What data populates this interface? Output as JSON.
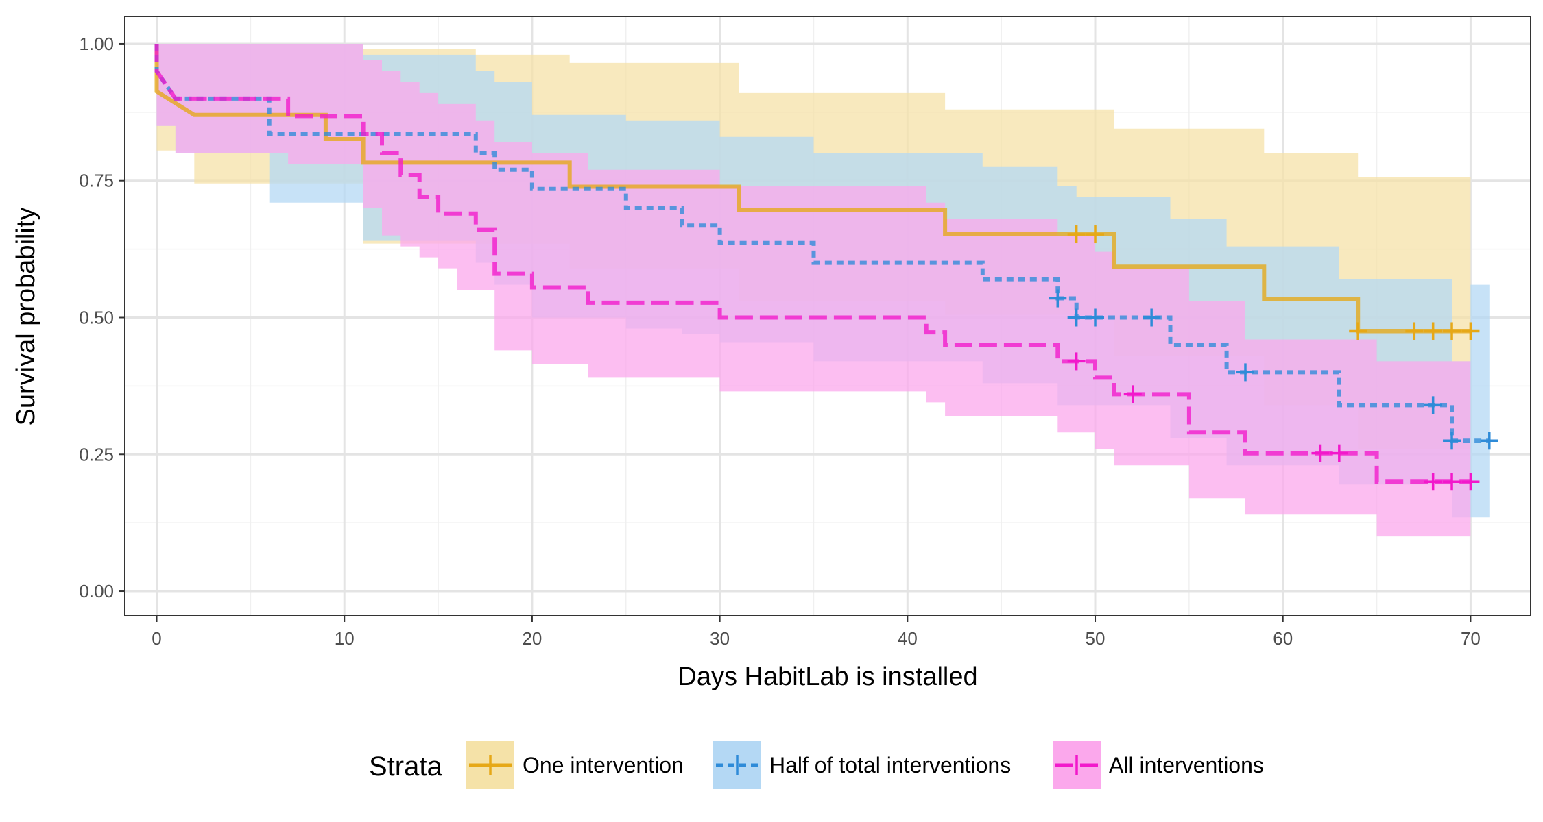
{
  "chart_data": {
    "type": "line",
    "subtype": "kaplan-meier step survival curves with confidence bands",
    "title": "",
    "xlabel": "Days HabitLab is installed",
    "ylabel": "Survival probability",
    "xlim": [
      -1.7,
      73.2
    ],
    "ylim": [
      -0.045,
      1.05
    ],
    "xticks": [
      0,
      10,
      20,
      30,
      40,
      50,
      60,
      70
    ],
    "yticks": [
      0.0,
      0.25,
      0.5,
      0.75,
      1.0
    ],
    "xtick_labels": [
      "0",
      "10",
      "20",
      "30",
      "40",
      "50",
      "60",
      "70"
    ],
    "ytick_labels": [
      "0.00",
      "0.25",
      "0.50",
      "0.75",
      "1.00"
    ],
    "grid": true,
    "legend": {
      "title": "Strata",
      "position": "bottom"
    },
    "series": [
      {
        "name": "One intervention",
        "color": "#E6A817",
        "band_color": "#F5E2A8",
        "dash": "solid",
        "steps": [
          [
            0,
            1.0
          ],
          [
            0,
            0.913
          ],
          [
            2,
            0.87
          ],
          [
            9,
            0.87
          ],
          [
            9,
            0.826
          ],
          [
            11,
            0.826
          ],
          [
            11,
            0.783
          ],
          [
            22,
            0.783
          ],
          [
            22,
            0.739
          ],
          [
            31,
            0.739
          ],
          [
            31,
            0.696
          ],
          [
            42,
            0.696
          ],
          [
            42,
            0.652
          ],
          [
            51,
            0.652
          ],
          [
            51,
            0.593
          ],
          [
            59,
            0.593
          ],
          [
            59,
            0.534
          ],
          [
            64,
            0.534
          ],
          [
            64,
            0.475
          ],
          [
            70,
            0.475
          ]
        ],
        "band_lower": [
          [
            0,
            0.805
          ],
          [
            2,
            0.745
          ],
          [
            9,
            0.745
          ],
          [
            11,
            0.635
          ],
          [
            22,
            0.59
          ],
          [
            31,
            0.53
          ],
          [
            42,
            0.505
          ],
          [
            51,
            0.43
          ],
          [
            59,
            0.34
          ],
          [
            64,
            0.26
          ],
          [
            70,
            0.26
          ]
        ],
        "band_upper": [
          [
            0,
            1.0
          ],
          [
            2,
            1.0
          ],
          [
            9,
            1.0
          ],
          [
            11,
            0.99
          ],
          [
            17,
            0.98
          ],
          [
            22,
            0.965
          ],
          [
            31,
            0.91
          ],
          [
            42,
            0.88
          ],
          [
            51,
            0.845
          ],
          [
            59,
            0.8
          ],
          [
            64,
            0.757
          ],
          [
            70,
            0.757
          ]
        ],
        "censored": [
          [
            49,
            0.652
          ],
          [
            50,
            0.652
          ],
          [
            64,
            0.475
          ],
          [
            67,
            0.475
          ],
          [
            68,
            0.475
          ],
          [
            69,
            0.475
          ],
          [
            70,
            0.475
          ]
        ]
      },
      {
        "name": "Half of total interventions",
        "color": "#2E8BD8",
        "band_color": "#B4D8F4",
        "dash": "short-dash",
        "steps": [
          [
            0,
            1.0
          ],
          [
            0,
            0.95
          ],
          [
            1,
            0.9
          ],
          [
            6,
            0.9
          ],
          [
            6,
            0.835
          ],
          [
            17,
            0.835
          ],
          [
            17,
            0.8
          ],
          [
            18,
            0.8
          ],
          [
            18,
            0.77
          ],
          [
            20,
            0.77
          ],
          [
            20,
            0.735
          ],
          [
            25,
            0.735
          ],
          [
            25,
            0.7
          ],
          [
            28,
            0.7
          ],
          [
            28,
            0.668
          ],
          [
            30,
            0.668
          ],
          [
            30,
            0.636
          ],
          [
            35,
            0.636
          ],
          [
            35,
            0.6
          ],
          [
            44,
            0.6
          ],
          [
            44,
            0.57
          ],
          [
            48,
            0.57
          ],
          [
            48,
            0.535
          ],
          [
            49,
            0.535
          ],
          [
            49,
            0.5
          ],
          [
            54,
            0.5
          ],
          [
            54,
            0.45
          ],
          [
            57,
            0.45
          ],
          [
            57,
            0.4
          ],
          [
            63,
            0.4
          ],
          [
            63,
            0.34
          ],
          [
            69,
            0.34
          ],
          [
            69,
            0.275
          ],
          [
            71,
            0.275
          ]
        ],
        "band_lower": [
          [
            0,
            0.85
          ],
          [
            1,
            0.8
          ],
          [
            6,
            0.71
          ],
          [
            9,
            0.71
          ],
          [
            11,
            0.64
          ],
          [
            17,
            0.6
          ],
          [
            18,
            0.56
          ],
          [
            20,
            0.5
          ],
          [
            25,
            0.48
          ],
          [
            28,
            0.47
          ],
          [
            30,
            0.455
          ],
          [
            35,
            0.42
          ],
          [
            44,
            0.38
          ],
          [
            48,
            0.34
          ],
          [
            54,
            0.28
          ],
          [
            57,
            0.23
          ],
          [
            63,
            0.195
          ],
          [
            69,
            0.135
          ],
          [
            71,
            0.135
          ]
        ],
        "band_upper": [
          [
            0,
            1.0
          ],
          [
            6,
            1.0
          ],
          [
            11,
            0.98
          ],
          [
            17,
            0.95
          ],
          [
            18,
            0.93
          ],
          [
            20,
            0.87
          ],
          [
            25,
            0.86
          ],
          [
            30,
            0.83
          ],
          [
            35,
            0.8
          ],
          [
            44,
            0.775
          ],
          [
            48,
            0.74
          ],
          [
            49,
            0.72
          ],
          [
            54,
            0.68
          ],
          [
            57,
            0.63
          ],
          [
            63,
            0.57
          ],
          [
            69,
            0.42
          ],
          [
            70,
            0.56
          ],
          [
            71,
            0.56
          ]
        ],
        "censored": [
          [
            48,
            0.535
          ],
          [
            49,
            0.5
          ],
          [
            50,
            0.5
          ],
          [
            53,
            0.5
          ],
          [
            58,
            0.4
          ],
          [
            68,
            0.34
          ],
          [
            69,
            0.275
          ],
          [
            71,
            0.275
          ]
        ]
      },
      {
        "name": "All interventions",
        "color": "#F218CB",
        "band_color": "#FBA8EC",
        "dash": "long-dash",
        "steps": [
          [
            0,
            1.0
          ],
          [
            0,
            0.95
          ],
          [
            1,
            0.9
          ],
          [
            7,
            0.9
          ],
          [
            7,
            0.868
          ],
          [
            11,
            0.868
          ],
          [
            11,
            0.835
          ],
          [
            12,
            0.835
          ],
          [
            12,
            0.8
          ],
          [
            13,
            0.8
          ],
          [
            13,
            0.76
          ],
          [
            14,
            0.76
          ],
          [
            14,
            0.72
          ],
          [
            15,
            0.72
          ],
          [
            15,
            0.69
          ],
          [
            17,
            0.69
          ],
          [
            17,
            0.66
          ],
          [
            18,
            0.66
          ],
          [
            18,
            0.58
          ],
          [
            20,
            0.58
          ],
          [
            20,
            0.555
          ],
          [
            23,
            0.555
          ],
          [
            23,
            0.527
          ],
          [
            30,
            0.527
          ],
          [
            30,
            0.5
          ],
          [
            41,
            0.5
          ],
          [
            41,
            0.473
          ],
          [
            42,
            0.473
          ],
          [
            42,
            0.45
          ],
          [
            48,
            0.45
          ],
          [
            48,
            0.42
          ],
          [
            50,
            0.42
          ],
          [
            50,
            0.39
          ],
          [
            51,
            0.39
          ],
          [
            51,
            0.36
          ],
          [
            55,
            0.36
          ],
          [
            55,
            0.29
          ],
          [
            58,
            0.29
          ],
          [
            58,
            0.252
          ],
          [
            65,
            0.252
          ],
          [
            65,
            0.2
          ],
          [
            70,
            0.2
          ]
        ],
        "band_lower": [
          [
            0,
            0.85
          ],
          [
            1,
            0.8
          ],
          [
            7,
            0.78
          ],
          [
            11,
            0.7
          ],
          [
            12,
            0.65
          ],
          [
            13,
            0.63
          ],
          [
            14,
            0.61
          ],
          [
            15,
            0.59
          ],
          [
            16,
            0.55
          ],
          [
            18,
            0.44
          ],
          [
            20,
            0.415
          ],
          [
            23,
            0.39
          ],
          [
            30,
            0.365
          ],
          [
            41,
            0.345
          ],
          [
            42,
            0.32
          ],
          [
            48,
            0.29
          ],
          [
            50,
            0.26
          ],
          [
            51,
            0.23
          ],
          [
            55,
            0.17
          ],
          [
            58,
            0.14
          ],
          [
            65,
            0.1
          ],
          [
            70,
            0.1
          ]
        ],
        "band_upper": [
          [
            0,
            1.0
          ],
          [
            7,
            1.0
          ],
          [
            11,
            0.97
          ],
          [
            12,
            0.95
          ],
          [
            13,
            0.93
          ],
          [
            14,
            0.91
          ],
          [
            15,
            0.89
          ],
          [
            17,
            0.86
          ],
          [
            18,
            0.82
          ],
          [
            20,
            0.8
          ],
          [
            23,
            0.77
          ],
          [
            30,
            0.74
          ],
          [
            41,
            0.71
          ],
          [
            42,
            0.68
          ],
          [
            48,
            0.65
          ],
          [
            50,
            0.62
          ],
          [
            51,
            0.59
          ],
          [
            55,
            0.53
          ],
          [
            58,
            0.46
          ],
          [
            65,
            0.42
          ],
          [
            70,
            0.42
          ]
        ],
        "censored": [
          [
            49,
            0.42
          ],
          [
            52,
            0.36
          ],
          [
            62,
            0.252
          ],
          [
            63,
            0.252
          ],
          [
            68,
            0.2
          ],
          [
            69,
            0.2
          ],
          [
            70,
            0.2
          ]
        ]
      }
    ]
  }
}
